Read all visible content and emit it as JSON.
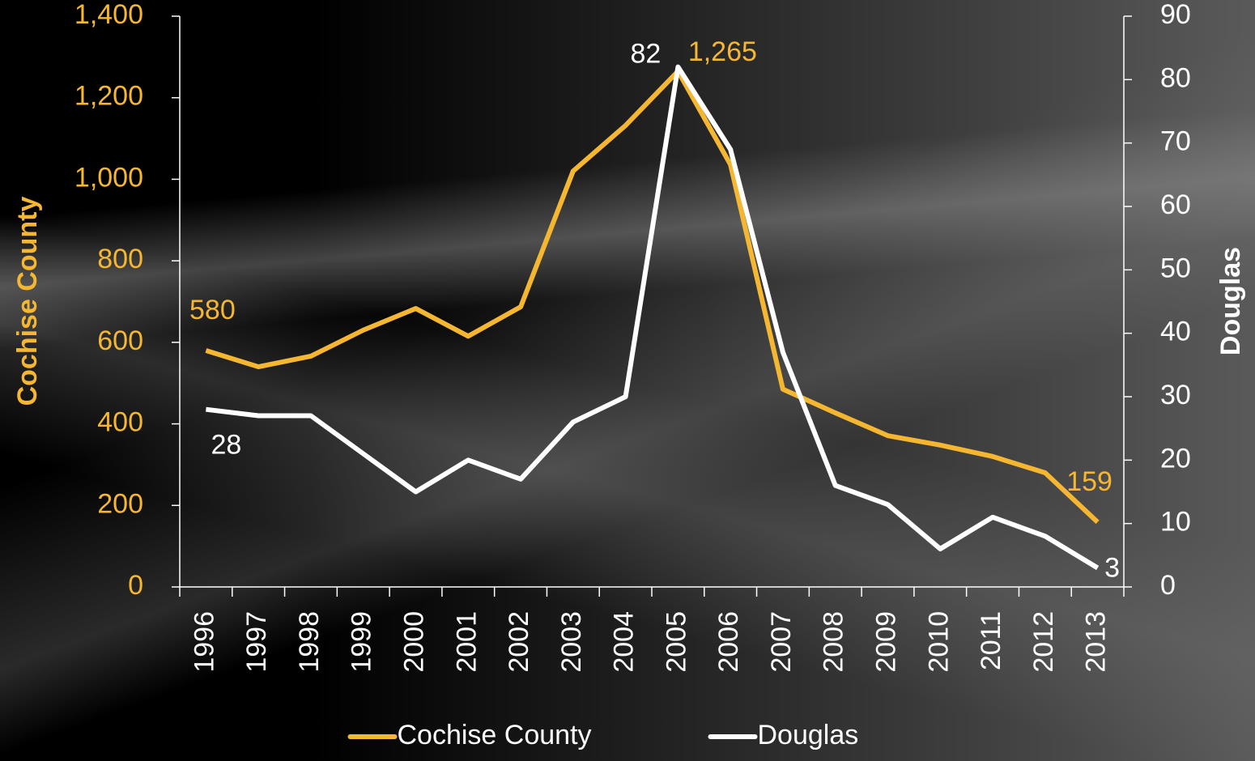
{
  "chart_data": {
    "type": "line",
    "y_label": "Cochise County",
    "y2_label": "Douglas",
    "categories": [
      "1996",
      "1997",
      "1998",
      "1999",
      "2000",
      "2001",
      "2002",
      "2003",
      "2004",
      "2005",
      "2006",
      "2007",
      "2008",
      "2009",
      "2010",
      "2011",
      "2012",
      "2013"
    ],
    "series": [
      {
        "name": "Cochise County",
        "color": "#f5b731",
        "axis": "y",
        "values": [
          580,
          540,
          566,
          630,
          683,
          615,
          687,
          1020,
          1132,
          1265,
          1036,
          485,
          427,
          371,
          348,
          320,
          280,
          159
        ],
        "value_labels": [
          "580",
          null,
          null,
          null,
          null,
          null,
          null,
          null,
          null,
          "1,265",
          null,
          null,
          null,
          null,
          null,
          null,
          null,
          "159"
        ]
      },
      {
        "name": "Douglas",
        "color": "#ffffff",
        "axis": "y2",
        "values": [
          28,
          27,
          27,
          21,
          15,
          20,
          17,
          26,
          30,
          82,
          69,
          37,
          16,
          13,
          6,
          11,
          8,
          3
        ],
        "value_labels": [
          "28",
          null,
          null,
          null,
          null,
          null,
          null,
          null,
          null,
          "82",
          null,
          null,
          null,
          null,
          null,
          null,
          null,
          "3"
        ]
      }
    ],
    "ylim": [
      0,
      1400
    ],
    "yticks": [
      0,
      200,
      400,
      600,
      800,
      {
        "value": 1000,
        "label": "1,000"
      },
      {
        "value": 1200,
        "label": "1,200"
      },
      {
        "value": 1400,
        "label": "1,400"
      }
    ],
    "y2lim": [
      0,
      90
    ],
    "y2ticks": [
      0,
      10,
      20,
      30,
      40,
      50,
      60,
      70,
      80,
      90
    ],
    "legend": "bottom"
  }
}
